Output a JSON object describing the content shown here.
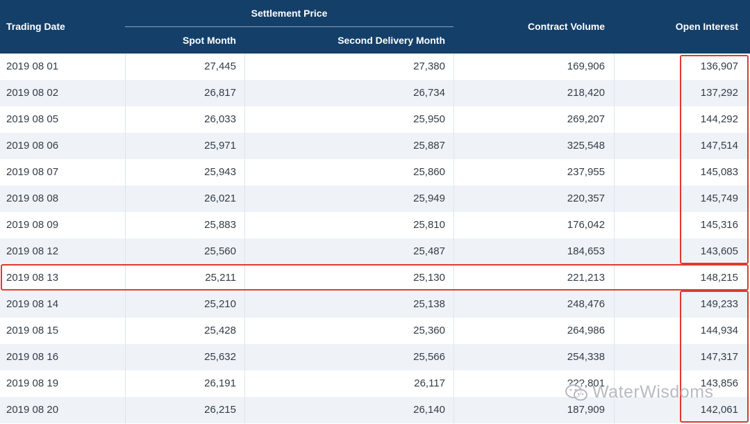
{
  "table": {
    "headers": {
      "trading_date": "Trading Date",
      "settlement_price": "Settlement Price",
      "spot_month": "Spot Month",
      "second_delivery_month": "Second Delivery Month",
      "contract_volume": "Contract Volume",
      "open_interest": "Open Interest"
    },
    "rows": [
      {
        "date": "2019 08 01",
        "spot": "27,445",
        "second": "27,380",
        "volume": "169,906",
        "oi": "136,907"
      },
      {
        "date": "2019 08 02",
        "spot": "26,817",
        "second": "26,734",
        "volume": "218,420",
        "oi": "137,292"
      },
      {
        "date": "2019 08 05",
        "spot": "26,033",
        "second": "25,950",
        "volume": "269,207",
        "oi": "144,292"
      },
      {
        "date": "2019 08 06",
        "spot": "25,971",
        "second": "25,887",
        "volume": "325,548",
        "oi": "147,514"
      },
      {
        "date": "2019 08 07",
        "spot": "25,943",
        "second": "25,860",
        "volume": "237,955",
        "oi": "145,083"
      },
      {
        "date": "2019 08 08",
        "spot": "26,021",
        "second": "25,949",
        "volume": "220,357",
        "oi": "145,749"
      },
      {
        "date": "2019 08 09",
        "spot": "25,883",
        "second": "25,810",
        "volume": "176,042",
        "oi": "145,316"
      },
      {
        "date": "2019 08 12",
        "spot": "25,560",
        "second": "25,487",
        "volume": "184,653",
        "oi": "143,605"
      },
      {
        "date": "2019 08 13",
        "spot": "25,211",
        "second": "25,130",
        "volume": "221,213",
        "oi": "148,215"
      },
      {
        "date": "2019 08 14",
        "spot": "25,210",
        "second": "25,138",
        "volume": "248,476",
        "oi": "149,233"
      },
      {
        "date": "2019 08 15",
        "spot": "25,428",
        "second": "25,360",
        "volume": "264,986",
        "oi": "144,934"
      },
      {
        "date": "2019 08 16",
        "spot": "25,632",
        "second": "25,566",
        "volume": "254,338",
        "oi": "147,317"
      },
      {
        "date": "2019 08 19",
        "spot": "26,191",
        "second": "26,117",
        "volume": "???,801",
        "oi": "143,856"
      },
      {
        "date": "2019 08 20",
        "spot": "26,215",
        "second": "26,140",
        "volume": "187,909",
        "oi": "142,061"
      }
    ]
  },
  "watermark": {
    "text": "WaterWisdoms",
    "icon": "wechat-icon"
  },
  "colors": {
    "header_bg": "#143f69",
    "highlight": "#e0392d",
    "row_alt": "#eff3f8"
  }
}
